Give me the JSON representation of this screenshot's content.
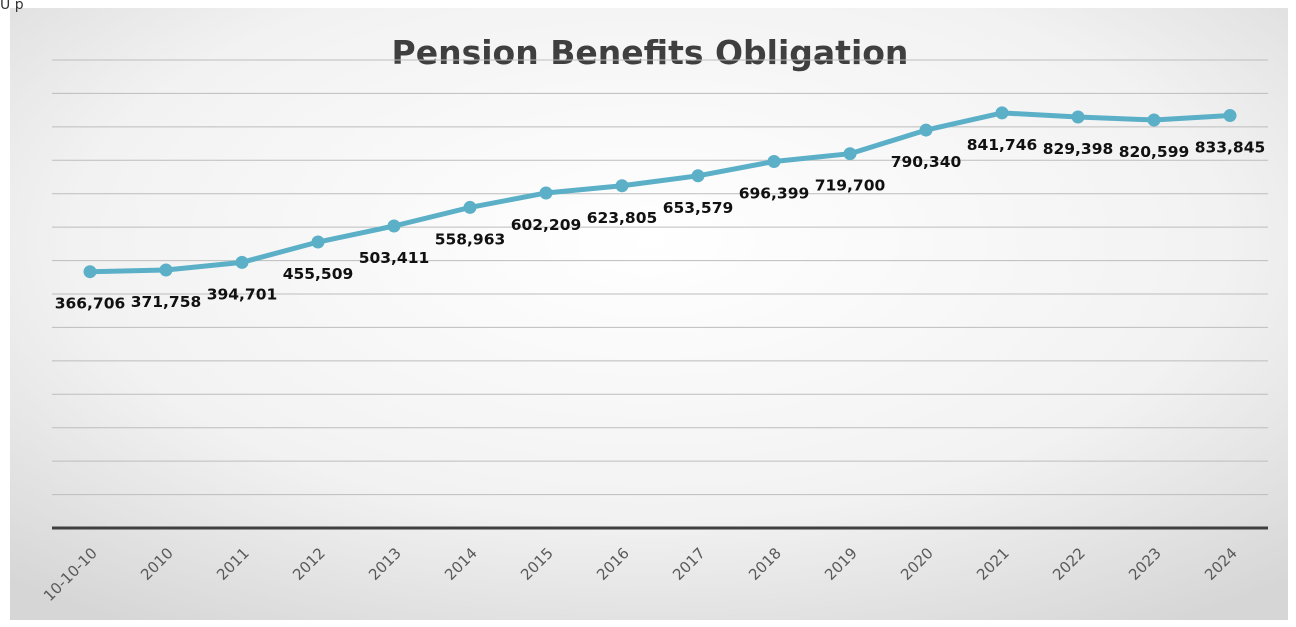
{
  "corner_fragment": "U p",
  "colors": {
    "series": "#5BB0C8",
    "axis": "#404040",
    "grid": "#bdbdbd",
    "title": "#3f3f3f",
    "background_center": "#ffffff",
    "background_edge": "#d9d9d9"
  },
  "chart_data": {
    "type": "line",
    "title": "Pension Benefits Obligation",
    "xlabel": "",
    "ylabel": "",
    "categories": [
      "10-10-10",
      "2010",
      "2011",
      "2012",
      "2013",
      "2014",
      "2015",
      "2016",
      "2017",
      "2018",
      "2019",
      "2020",
      "2021",
      "2022",
      "2023",
      "2024"
    ],
    "series": [
      {
        "values": [
          366706,
          371758,
          394701,
          455509,
          503411,
          558963,
          602209,
          623805,
          653579,
          696399,
          719700,
          790340,
          841746,
          829398,
          820599,
          833845
        ],
        "labels": [
          "366,706",
          "371,758",
          "394,701",
          "455,509",
          "503,411",
          "558,963",
          "602,209",
          "623,805",
          "653,579",
          "696,399",
          "719,700",
          "790,340",
          "841,746",
          "829,398",
          "820,599",
          "833,845"
        ]
      }
    ],
    "ylim": [
      -400000,
      1000000
    ],
    "grid": true,
    "legend": "none",
    "y_tick_labels_shown": false,
    "data_labels": true
  }
}
